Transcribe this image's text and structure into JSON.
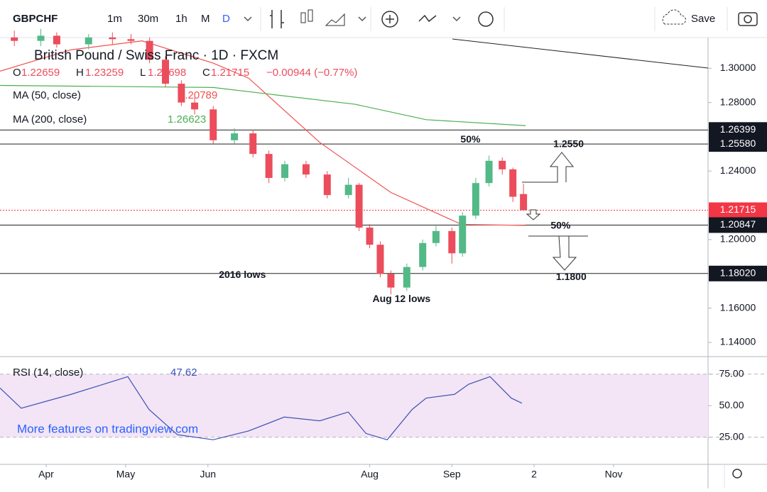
{
  "toolbar": {
    "symbol": "GBPCHF",
    "intervals": [
      "1m",
      "30m",
      "1h",
      "M",
      "D"
    ],
    "save": "Save"
  },
  "legend": {
    "title": "British Pound / Swiss Franc · 1D · FXCM",
    "ohlc": [
      {
        "key": "O",
        "value": "1.22659"
      },
      {
        "key": "H",
        "value": "1.23259"
      },
      {
        "key": "L",
        "value": "1.21698"
      },
      {
        "key": "C",
        "value": "1.21715"
      }
    ],
    "change": "−0.00944 (−0.77%)",
    "ma50": {
      "name": "MA (50, close)",
      "value": "1.20789"
    },
    "ma200": {
      "name": "MA (200, close)",
      "value": "1.26623"
    },
    "rsi": {
      "name": "RSI (14, close)",
      "value": "47.62"
    },
    "promo": "More features on tradingview.com"
  },
  "chart_data": [
    {
      "type": "candlestick",
      "xlim": [
        -17.4,
        249.6
      ],
      "ylim": [
        1.3171,
        1.1317
      ],
      "xticks": [
        {
          "value": 0,
          "label": "Apr"
        },
        {
          "value": 30,
          "label": "May"
        },
        {
          "value": 61,
          "label": "Jun"
        },
        {
          "value": 122,
          "label": "Aug"
        },
        {
          "value": 153,
          "label": "Sep"
        },
        {
          "value": 184,
          "label": "2"
        },
        {
          "value": 214,
          "label": "Nov"
        }
      ],
      "yticks": [
        {
          "value": 1.3,
          "label": "1.30000"
        },
        {
          "value": 1.28,
          "label": "1.28000"
        },
        {
          "value": 1.24,
          "label": "1.24000"
        },
        {
          "value": 1.2,
          "label": "1.20000"
        },
        {
          "value": 1.16,
          "label": "1.16000"
        },
        {
          "value": 1.14,
          "label": "1.14000"
        }
      ],
      "levels": [
        {
          "value": 1.26399,
          "label": "1.26399"
        },
        {
          "value": 1.2558,
          "label": "1.25580"
        },
        {
          "value": 1.21715,
          "label": "1.21715",
          "color": "#f23645"
        },
        {
          "value": 1.20847,
          "label": "1.20847"
        },
        {
          "value": 1.1802,
          "label": "1.18020"
        }
      ],
      "colors": {
        "up": "#53b987",
        "down": "#eb4d5c"
      },
      "candles": {
        "x": [
          -12,
          -2,
          4,
          16,
          25,
          32,
          39,
          45,
          51,
          56,
          63,
          71,
          78,
          84,
          90,
          98,
          106,
          114,
          118,
          122,
          126,
          130,
          136,
          142,
          147,
          153,
          157,
          162,
          167,
          172,
          176,
          180
        ],
        "open": [
          1.318,
          1.316,
          1.319,
          1.314,
          1.318,
          1.317,
          1.316,
          1.305,
          1.291,
          1.28,
          1.276,
          1.258,
          1.262,
          1.25,
          1.236,
          1.244,
          1.238,
          1.226,
          1.232,
          1.207,
          1.197,
          1.18,
          1.172,
          1.184,
          1.198,
          1.205,
          1.192,
          1.214,
          1.233,
          1.246,
          1.241,
          1.22659
        ],
        "high": [
          1.322,
          1.323,
          1.321,
          1.32,
          1.321,
          1.32,
          1.318,
          1.307,
          1.293,
          1.283,
          1.278,
          1.265,
          1.264,
          1.252,
          1.246,
          1.246,
          1.24,
          1.236,
          1.233,
          1.209,
          1.199,
          1.182,
          1.186,
          1.2,
          1.208,
          1.207,
          1.216,
          1.236,
          1.249,
          1.248,
          1.242,
          1.23259
        ],
        "low": [
          1.313,
          1.313,
          1.312,
          1.311,
          1.314,
          1.314,
          1.303,
          1.289,
          1.278,
          1.273,
          1.256,
          1.256,
          1.248,
          1.233,
          1.234,
          1.236,
          1.224,
          1.224,
          1.205,
          1.195,
          1.178,
          1.168,
          1.17,
          1.182,
          1.196,
          1.186,
          1.19,
          1.212,
          1.231,
          1.238,
          1.222,
          1.21698
        ],
        "close": [
          1.316,
          1.319,
          1.314,
          1.318,
          1.317,
          1.316,
          1.305,
          1.291,
          1.28,
          1.276,
          1.258,
          1.262,
          1.25,
          1.236,
          1.244,
          1.238,
          1.226,
          1.232,
          1.207,
          1.197,
          1.18,
          1.172,
          1.184,
          1.198,
          1.205,
          1.192,
          1.214,
          1.233,
          1.246,
          1.241,
          1.225,
          1.21715
        ]
      },
      "series": [
        {
          "name": "MA (50, close)",
          "color": "#f0524f",
          "x": [
            -17.4,
            9.4,
            36.2,
            63,
            76.4,
            103.2,
            130,
            156.7,
            180.8
          ],
          "values": [
            1.2983,
            1.3108,
            1.316,
            1.303,
            1.2942,
            1.2567,
            1.2275,
            1.2088,
            1.2083
          ]
        },
        {
          "name": "MA (200, close)",
          "color": "#4caf50",
          "x": [
            -17.4,
            63,
            116.5,
            143.3,
            180.8
          ],
          "values": [
            1.29,
            1.2888,
            1.279,
            1.27,
            1.2665
          ]
        }
      ],
      "annotations": [
        {
          "text": "50%",
          "x": 160,
          "y": 1.2583
        },
        {
          "text": "1.2550",
          "x": 197,
          "y": 1.2555
        },
        {
          "text": "50%",
          "x": 194,
          "y": 1.2079
        },
        {
          "text": "1.1800",
          "x": 198,
          "y": 1.1779
        },
        {
          "text": "2016 lows",
          "x": 74,
          "y": 1.1792
        },
        {
          "text": "Aug 12 lows",
          "x": 134,
          "y": 1.1652
        }
      ]
    },
    {
      "type": "line",
      "name": "RSI (14, close)",
      "ylim": [
        87.8,
        3.5
      ],
      "yticks": [
        {
          "value": 75,
          "label": "75.00"
        },
        {
          "value": 50,
          "label": "50.00"
        },
        {
          "value": 25,
          "label": "25.00"
        }
      ],
      "series": [
        {
          "name": "RSI",
          "color": "#3f51b5",
          "x": [
            -17.4,
            -9.4,
            9.4,
            30.8,
            38.8,
            49.5,
            63,
            76.4,
            89.8,
            103.2,
            113.9,
            120.6,
            128.6,
            138,
            143.3,
            154,
            159.3,
            167.4,
            175.4,
            179.4
          ],
          "values": [
            64,
            48,
            59,
            73,
            47,
            27,
            23,
            30,
            41,
            38,
            45,
            28,
            23,
            47,
            56,
            59,
            67,
            73,
            56,
            52
          ]
        }
      ]
    }
  ]
}
